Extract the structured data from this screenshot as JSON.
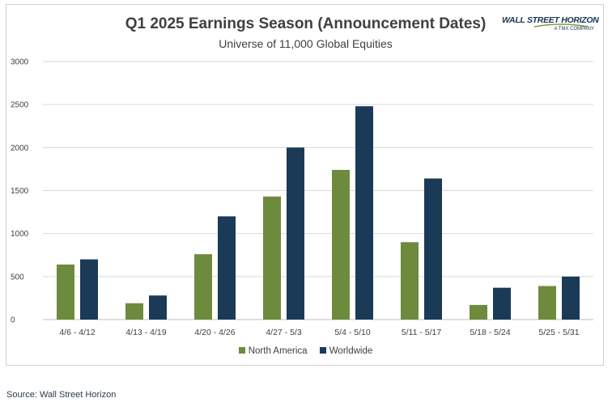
{
  "chart_data": {
    "type": "bar",
    "title": "Q1 2025 Earnings Season (Announcement Dates)",
    "subtitle": "Universe of 11,000 Global Equities",
    "categories": [
      "4/6 - 4/12",
      "4/13 - 4/19",
      "4/20 - 4/26",
      "4/27 - 5/3",
      "5/4 - 5/10",
      "5/11 - 5/17",
      "5/18 - 5/24",
      "5/25 - 5/31"
    ],
    "series": [
      {
        "name": "North America",
        "color": "#6e8b3d",
        "values": [
          640,
          190,
          760,
          1430,
          1740,
          900,
          170,
          390
        ]
      },
      {
        "name": "Worldwide",
        "color": "#1b3a57",
        "values": [
          700,
          280,
          1200,
          2000,
          2480,
          1640,
          370,
          500
        ]
      }
    ],
    "yticks": [
      "3000",
      "2500",
      "2000",
      "1500",
      "1000",
      "500",
      "0"
    ],
    "ylim": [
      0,
      3000
    ],
    "grid": true,
    "legend_position": "bottom"
  },
  "logo": {
    "main_text": "WALL STREET HORIZON",
    "sub_text": "A TMX COMPANY"
  },
  "source": "Source: Wall Street Horizon"
}
